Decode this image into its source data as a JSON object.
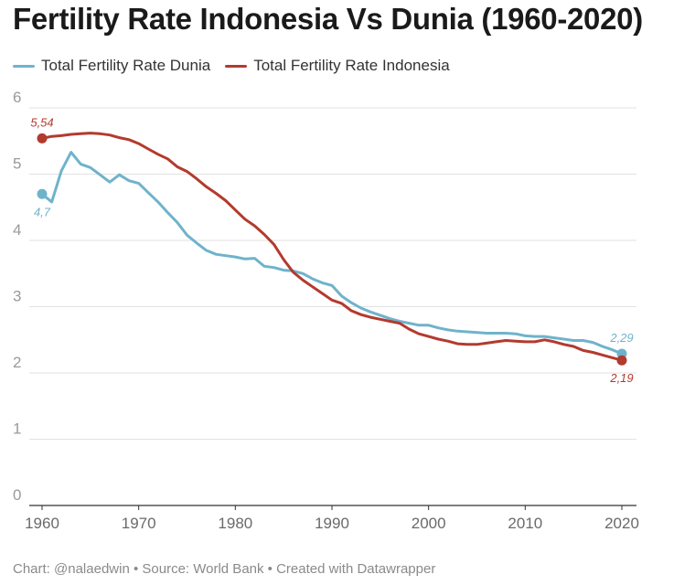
{
  "chart_data": {
    "type": "line",
    "title": "Fertility Rate Indonesia Vs Dunia (1960-2020)",
    "xlabel": "",
    "ylabel": "",
    "xlim": [
      1960,
      2020
    ],
    "ylim": [
      0,
      6
    ],
    "x_ticks": [
      1960,
      1970,
      1980,
      1990,
      2000,
      2010,
      2020
    ],
    "y_ticks": [
      0,
      1,
      2,
      3,
      4,
      5,
      6
    ],
    "grid": "horizontal",
    "legend_position": "top-left",
    "x": [
      1960,
      1961,
      1962,
      1963,
      1964,
      1965,
      1966,
      1967,
      1968,
      1969,
      1970,
      1971,
      1972,
      1973,
      1974,
      1975,
      1976,
      1977,
      1978,
      1979,
      1980,
      1981,
      1982,
      1983,
      1984,
      1985,
      1986,
      1987,
      1988,
      1989,
      1990,
      1991,
      1992,
      1993,
      1994,
      1995,
      1996,
      1997,
      1998,
      1999,
      2000,
      2001,
      2002,
      2003,
      2004,
      2005,
      2006,
      2007,
      2008,
      2009,
      2010,
      2011,
      2012,
      2013,
      2014,
      2015,
      2016,
      2017,
      2018,
      2019,
      2020
    ],
    "series": [
      {
        "name": "Total Fertility Rate Dunia",
        "color": "#6fb3cb",
        "values": [
          4.7,
          4.58,
          5.05,
          5.33,
          5.15,
          5.1,
          4.99,
          4.88,
          4.99,
          4.9,
          4.86,
          4.72,
          4.58,
          4.42,
          4.27,
          4.08,
          3.96,
          3.85,
          3.79,
          3.77,
          3.75,
          3.72,
          3.73,
          3.61,
          3.59,
          3.55,
          3.54,
          3.5,
          3.42,
          3.36,
          3.32,
          3.16,
          3.06,
          2.98,
          2.92,
          2.87,
          2.82,
          2.78,
          2.75,
          2.72,
          2.72,
          2.68,
          2.65,
          2.63,
          2.62,
          2.61,
          2.6,
          2.6,
          2.6,
          2.59,
          2.56,
          2.55,
          2.55,
          2.53,
          2.51,
          2.49,
          2.49,
          2.46,
          2.4,
          2.35,
          2.29
        ]
      },
      {
        "name": "Total Fertility Rate Indonesia",
        "color": "#b33a2e",
        "values": [
          5.54,
          5.57,
          5.58,
          5.6,
          5.61,
          5.62,
          5.61,
          5.59,
          5.55,
          5.52,
          5.46,
          5.38,
          5.3,
          5.23,
          5.11,
          5.04,
          4.93,
          4.81,
          4.71,
          4.6,
          4.46,
          4.32,
          4.22,
          4.09,
          3.94,
          3.71,
          3.52,
          3.4,
          3.3,
          3.2,
          3.1,
          3.05,
          2.94,
          2.88,
          2.84,
          2.81,
          2.78,
          2.75,
          2.66,
          2.59,
          2.55,
          2.51,
          2.48,
          2.44,
          2.43,
          2.43,
          2.45,
          2.47,
          2.49,
          2.48,
          2.47,
          2.47,
          2.5,
          2.47,
          2.43,
          2.4,
          2.34,
          2.31,
          2.27,
          2.23,
          2.19
        ]
      }
    ],
    "annotations": [
      {
        "series": 1,
        "year": 1960,
        "text": "5,54",
        "place": "above"
      },
      {
        "series": 0,
        "year": 1960,
        "text": "4,7",
        "place": "below"
      },
      {
        "series": 0,
        "year": 2020,
        "text": "2,29",
        "place": "above"
      },
      {
        "series": 1,
        "year": 2020,
        "text": "2,19",
        "place": "below"
      }
    ]
  },
  "footer": {
    "credit": "Chart: @nalaedwin • Source: World Bank • Created with Datawrapper"
  }
}
